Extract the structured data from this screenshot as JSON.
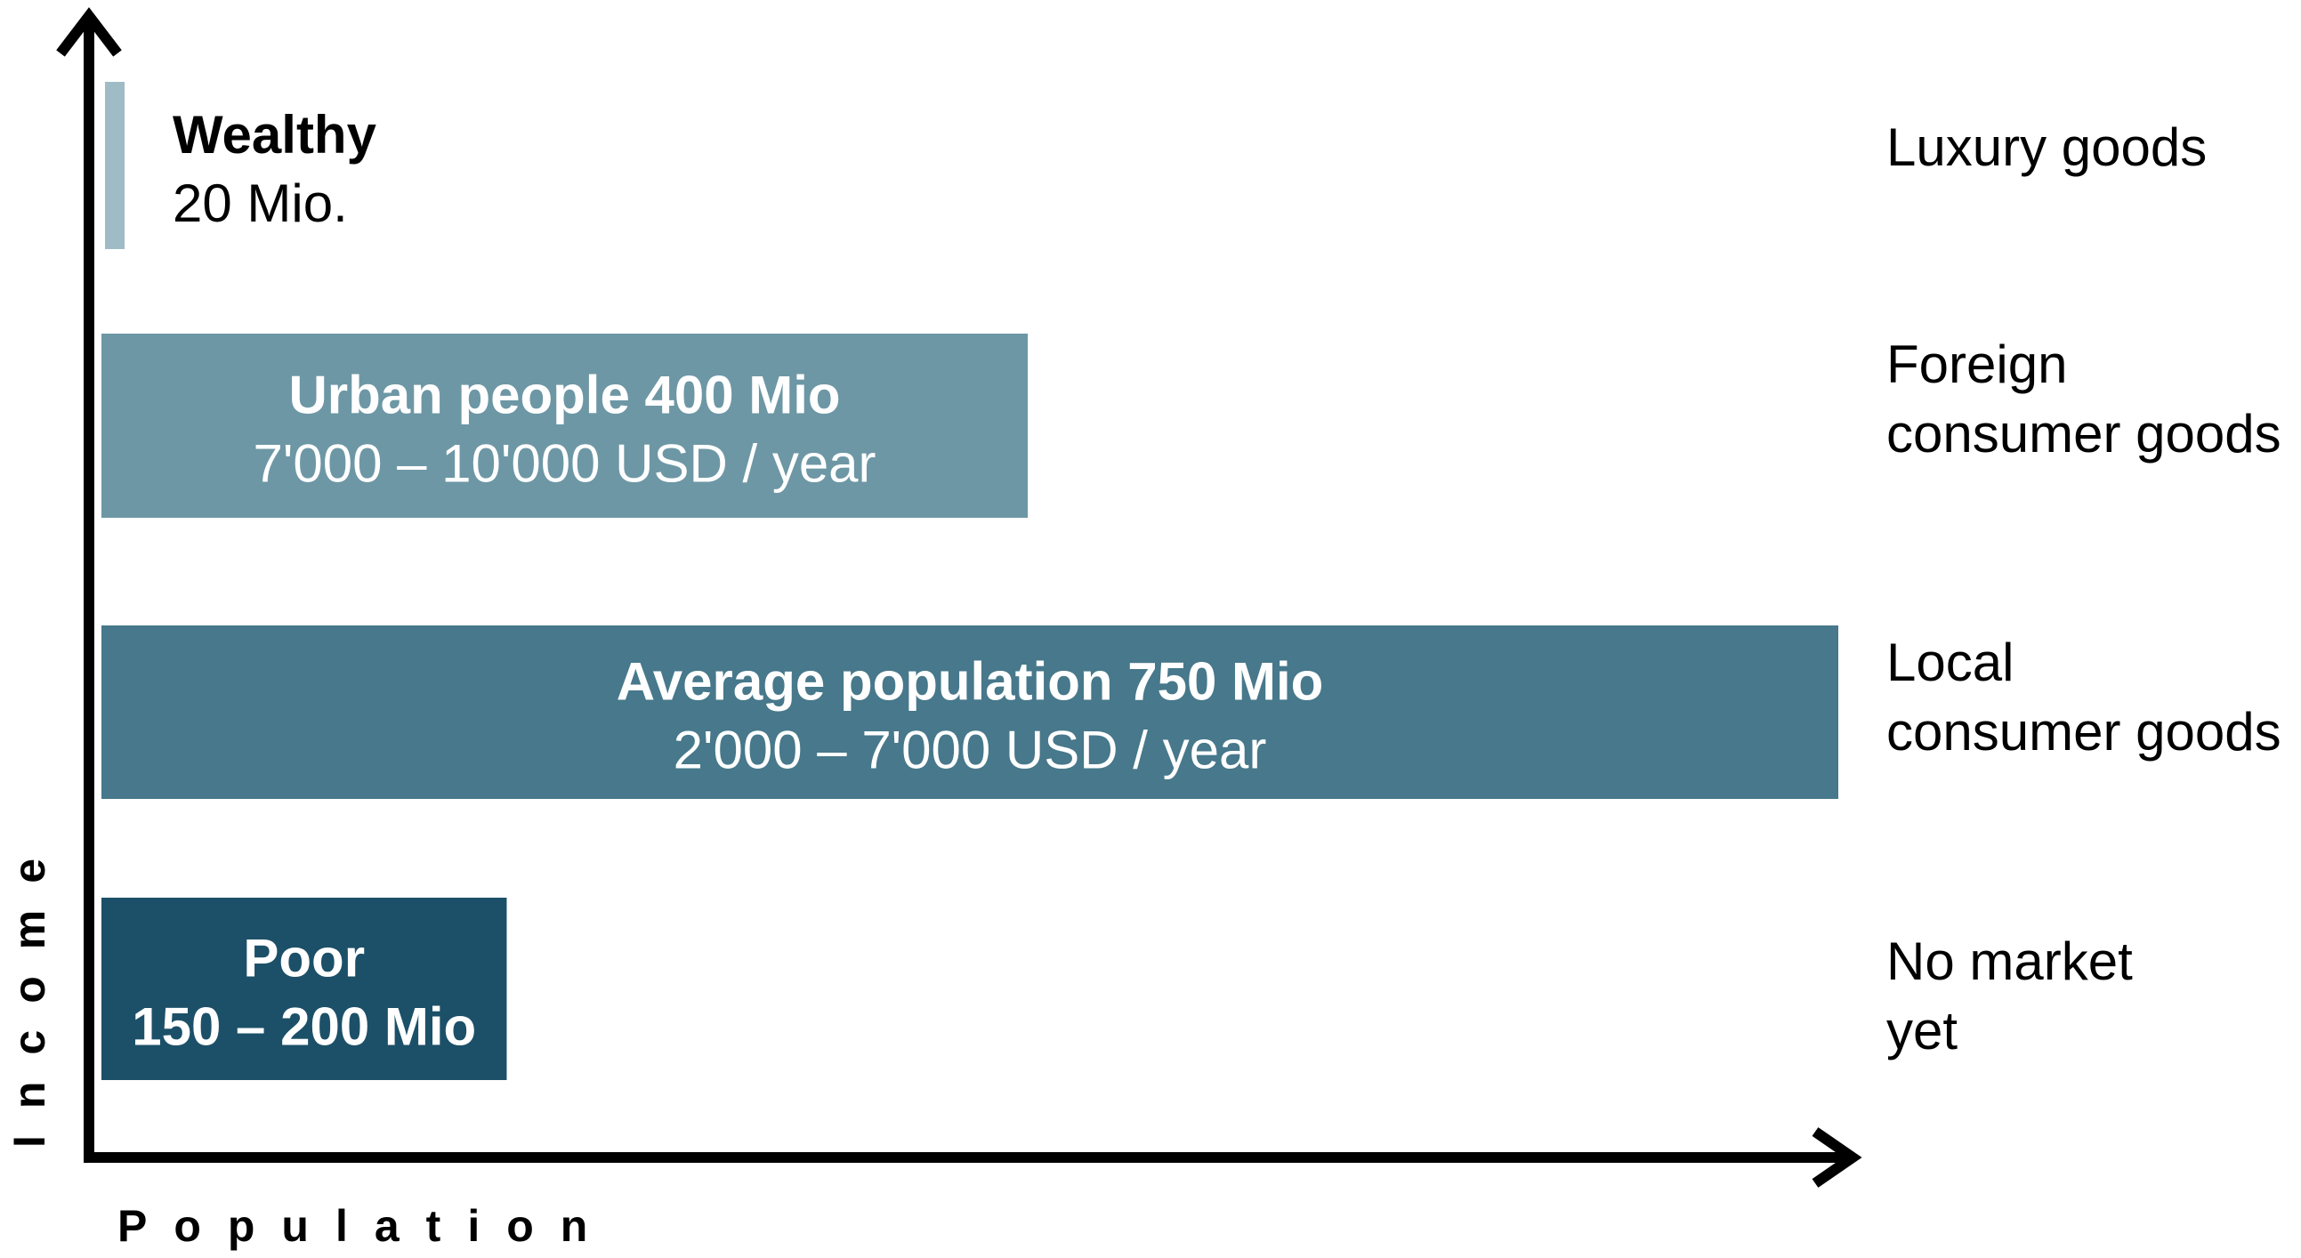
{
  "chart_data": {
    "type": "bar",
    "orientation": "horizontal",
    "xlabel": "Population",
    "ylabel": "Income",
    "x_unit": "Mio",
    "colors": {
      "wealthy": "#9fbcc6",
      "urban": "#6d97a5",
      "average": "#47788b",
      "poor": "#1c5068",
      "axis": "#000000"
    },
    "segments": [
      {
        "key": "wealthy",
        "title": "Wealthy",
        "subtitle": "20 Mio.",
        "population_mio": 20,
        "market": [
          "Luxury goods"
        ],
        "label_position": "outside",
        "subtitle_bold": false
      },
      {
        "key": "urban",
        "title": "Urban people 400 Mio",
        "subtitle": "7'000 – 10'000 USD / year",
        "population_mio": 400,
        "market": [
          "Foreign",
          "consumer goods"
        ],
        "label_position": "inside",
        "subtitle_bold": false
      },
      {
        "key": "average",
        "title": "Average population 750 Mio",
        "subtitle": "2'000 – 7'000 USD / year",
        "population_mio": 750,
        "market": [
          "Local",
          "consumer goods"
        ],
        "label_position": "inside",
        "subtitle_bold": false
      },
      {
        "key": "poor",
        "title": "Poor",
        "subtitle": "150 – 200 Mio",
        "population_mio": 175,
        "market": [
          "No market",
          "yet"
        ],
        "label_position": "inside",
        "subtitle_bold": true
      }
    ]
  }
}
